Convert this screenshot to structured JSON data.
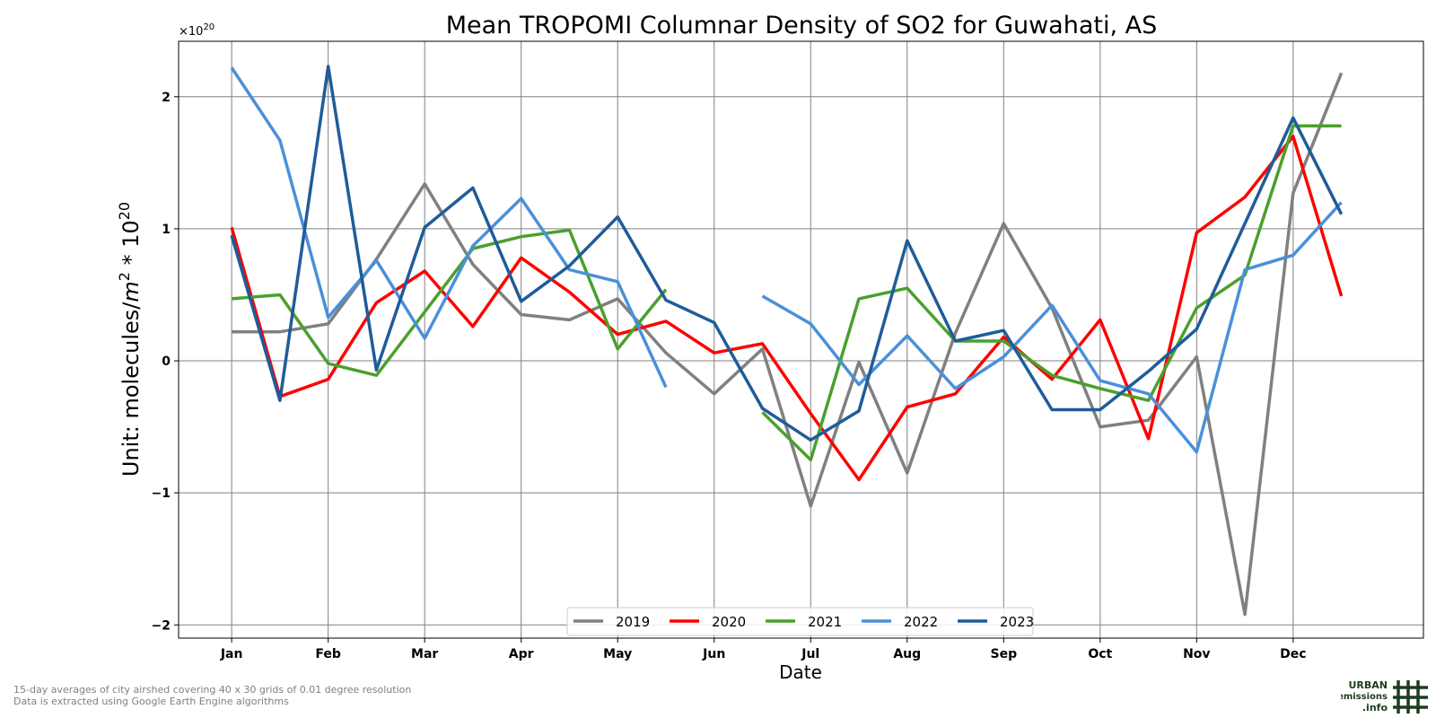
{
  "chart_data": {
    "type": "line",
    "title": "Mean TROPOMI Columnar Density of SO2 for Guwahati, AS",
    "xlabel": "Date",
    "ylabel": "Unit: molecules/m² * 10²⁰",
    "ylabel_parts": {
      "pre": "Unit: molecules/",
      "italic": "m",
      "sup1": "2",
      "mid": " * 10",
      "sup2": "20"
    },
    "y_offset_label": {
      "base": "×10",
      "exp": "20"
    },
    "ylim": [
      -2.1,
      2.42
    ],
    "xlim": [
      0.45,
      13.35
    ],
    "y_ticks": [
      -2,
      -1,
      0,
      1,
      2
    ],
    "y_tick_labels": [
      "−2",
      "−1",
      "0",
      "1",
      "2"
    ],
    "x_ticks": [
      1,
      2,
      3,
      4,
      5,
      6,
      7,
      8,
      9,
      10,
      11,
      12
    ],
    "x_tick_labels": [
      "Jan",
      "Feb",
      "Mar",
      "Apr",
      "May",
      "Jun",
      "Jul",
      "Aug",
      "Sep",
      "Oct",
      "Nov",
      "Dec"
    ],
    "x": [
      1.0,
      1.5,
      2.0,
      2.5,
      3.0,
      3.5,
      4.0,
      4.5,
      5.0,
      5.5,
      6.0,
      6.5,
      7.0,
      7.5,
      8.0,
      8.5,
      9.0,
      9.5,
      10.0,
      10.5,
      11.0,
      11.5,
      12.0,
      12.5
    ],
    "grid": true,
    "legend_position": "bottom-center",
    "series": [
      {
        "name": "2019",
        "color": "#808080",
        "values": [
          0.22,
          0.22,
          0.28,
          0.77,
          1.34,
          0.73,
          0.35,
          0.31,
          0.47,
          0.06,
          -0.25,
          0.09,
          -1.1,
          -0.01,
          -0.85,
          0.21,
          1.04,
          0.4,
          -0.5,
          -0.45,
          0.03,
          -1.92,
          1.27,
          2.18
        ]
      },
      {
        "name": "2020",
        "color": "#ff0000",
        "values": [
          1.01,
          -0.27,
          -0.14,
          0.44,
          0.68,
          0.26,
          0.78,
          0.52,
          0.2,
          0.3,
          0.06,
          0.13,
          -0.4,
          -0.9,
          -0.35,
          -0.25,
          0.18,
          -0.14,
          0.31,
          -0.59,
          0.97,
          1.24,
          1.7,
          0.49
        ]
      },
      {
        "name": "2021",
        "color": "#4aa02c",
        "values": [
          0.47,
          0.5,
          -0.02,
          -0.11,
          0.37,
          0.85,
          0.94,
          0.99,
          0.09,
          0.54,
          null,
          -0.39,
          -0.75,
          0.47,
          0.55,
          0.15,
          0.15,
          -0.11,
          -0.21,
          -0.3,
          0.4,
          0.65,
          1.78,
          1.78
        ]
      },
      {
        "name": "2022",
        "color": "#4a90d9",
        "values": [
          2.22,
          1.67,
          0.33,
          0.76,
          0.17,
          0.87,
          1.23,
          0.69,
          0.6,
          -0.2,
          null,
          0.49,
          0.28,
          -0.18,
          0.19,
          -0.21,
          0.03,
          0.42,
          -0.15,
          -0.25,
          -0.69,
          0.69,
          0.8,
          1.2
        ]
      },
      {
        "name": "2023",
        "color": "#1f5c99",
        "values": [
          0.95,
          -0.3,
          2.23,
          -0.07,
          1.01,
          1.31,
          0.45,
          0.72,
          1.09,
          0.46,
          0.29,
          -0.36,
          -0.6,
          -0.38,
          0.91,
          0.15,
          0.23,
          -0.37,
          -0.37,
          -0.08,
          0.24,
          1.04,
          1.84,
          1.11
        ]
      }
    ]
  },
  "footnotes": {
    "line1": "15-day averages of city airshed covering 40 x 30 grids of 0.01 degree resolution",
    "line2": "Data is extracted using Google Earth Engine algorithms"
  },
  "logo": {
    "line1": "URBAN",
    "line2": "emissions",
    "line3": ".info",
    "color": "#1d3d1f"
  }
}
